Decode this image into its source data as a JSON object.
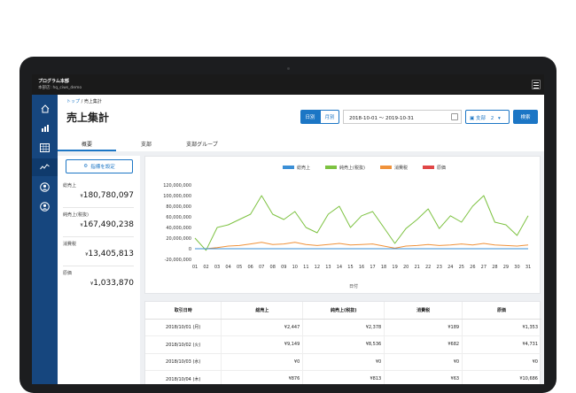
{
  "app": {
    "program_name": "プログラム本部",
    "user_label": "本部店: hq_ciws_demo"
  },
  "breadcrumb": {
    "home": "トップ",
    "separator": "/",
    "current": "売上集計"
  },
  "page_title": "売上集計",
  "period": {
    "day_label": "日別",
    "month_label": "月別",
    "range": "2018-10-01 〜 2019-10-31"
  },
  "branch_select": {
    "label": "支部",
    "count": "2"
  },
  "search_label": "検索",
  "tabs": [
    {
      "label": "概要"
    },
    {
      "label": "支部"
    },
    {
      "label": "支部グループ"
    }
  ],
  "settings_button": "指標を設定",
  "kpis": [
    {
      "label": "総売上",
      "currency": "¥",
      "value": "180,780,097"
    },
    {
      "label": "純売上(税抜)",
      "currency": "¥",
      "value": "167,490,238"
    },
    {
      "label": "消費税",
      "currency": "¥",
      "value": "13,405,813"
    },
    {
      "label": "原価",
      "currency": "¥",
      "value": "1,033,870"
    }
  ],
  "colors": {
    "brand": "#1c76c5",
    "sidebar": "#16467e"
  },
  "icons": [
    "home-icon",
    "bar-chart-icon",
    "table-icon",
    "line-chart-icon",
    "user-circle-icon",
    "user-circle-alt-icon",
    "filter-icon",
    "calendar-icon",
    "store-icon",
    "chevron-down-icon",
    "menu-icon"
  ],
  "chart_data": {
    "type": "line",
    "xlabel": "日付",
    "x": [
      "01",
      "02",
      "03",
      "04",
      "05",
      "06",
      "07",
      "08",
      "09",
      "10",
      "11",
      "12",
      "13",
      "14",
      "15",
      "16",
      "17",
      "18",
      "19",
      "20",
      "21",
      "22",
      "23",
      "24",
      "25",
      "26",
      "27",
      "28",
      "29",
      "30",
      "31"
    ],
    "y_ticks": [
      "-20,000,000",
      "0",
      "20,000,000",
      "40,000,000",
      "60,000,000",
      "80,000,000",
      "100,000,000",
      "120,000,000"
    ],
    "ylim": [
      -20000000,
      120000000
    ],
    "series": [
      {
        "name": "総売上",
        "color": "#3b8fd6",
        "values": [
          300,
          250,
          250,
          250,
          250,
          250,
          250,
          250,
          250,
          250,
          250,
          250,
          250,
          250,
          250,
          250,
          250,
          250,
          250,
          250,
          250,
          250,
          250,
          250,
          250,
          250,
          250,
          250,
          250,
          250,
          250
        ]
      },
      {
        "name": "純売上(税抜)",
        "color": "#7dc241",
        "values": [
          20000000,
          -3000000,
          40000000,
          45000000,
          55000000,
          65000000,
          100000000,
          65000000,
          55000000,
          70000000,
          40000000,
          30000000,
          65000000,
          80000000,
          40000000,
          62000000,
          70000000,
          40000000,
          10000000,
          38000000,
          55000000,
          75000000,
          38000000,
          62000000,
          50000000,
          80000000,
          100000000,
          50000000,
          45000000,
          25000000,
          62000000
        ]
      },
      {
        "name": "消費税",
        "color": "#f0923a",
        "values": [
          0,
          0,
          2000000,
          5000000,
          6000000,
          9000000,
          12000000,
          8000000,
          9000000,
          12000000,
          8000000,
          6000000,
          8000000,
          10000000,
          7000000,
          8000000,
          9000000,
          5000000,
          1000000,
          5000000,
          6000000,
          8000000,
          6000000,
          7000000,
          9000000,
          7000000,
          10000000,
          7000000,
          6000000,
          5000000,
          7000000
        ]
      },
      {
        "name": "原価",
        "color": "#e04646",
        "values": [
          0,
          0,
          0,
          0,
          0,
          0,
          0,
          0,
          0,
          0,
          0,
          0,
          0,
          0,
          0,
          0,
          0,
          0,
          0,
          0,
          0,
          0,
          0,
          0,
          0,
          0,
          0,
          0,
          0,
          0,
          0
        ]
      }
    ]
  },
  "table": {
    "headers": [
      "取引日時",
      "総売上",
      "純売上(税抜)",
      "消費税",
      "原価"
    ],
    "rows": [
      [
        "2018/10/01 (月)",
        "¥2,447",
        "¥2,378",
        "¥189",
        "¥1,353"
      ],
      [
        "2018/10/02 (火)",
        "¥9,149",
        "¥8,536",
        "¥682",
        "¥4,731"
      ],
      [
        "2018/10/03 (水)",
        "¥0",
        "¥0",
        "¥0",
        "¥0"
      ],
      [
        "2018/10/04 (木)",
        "¥876",
        "¥813",
        "¥63",
        "¥10,686"
      ]
    ]
  }
}
